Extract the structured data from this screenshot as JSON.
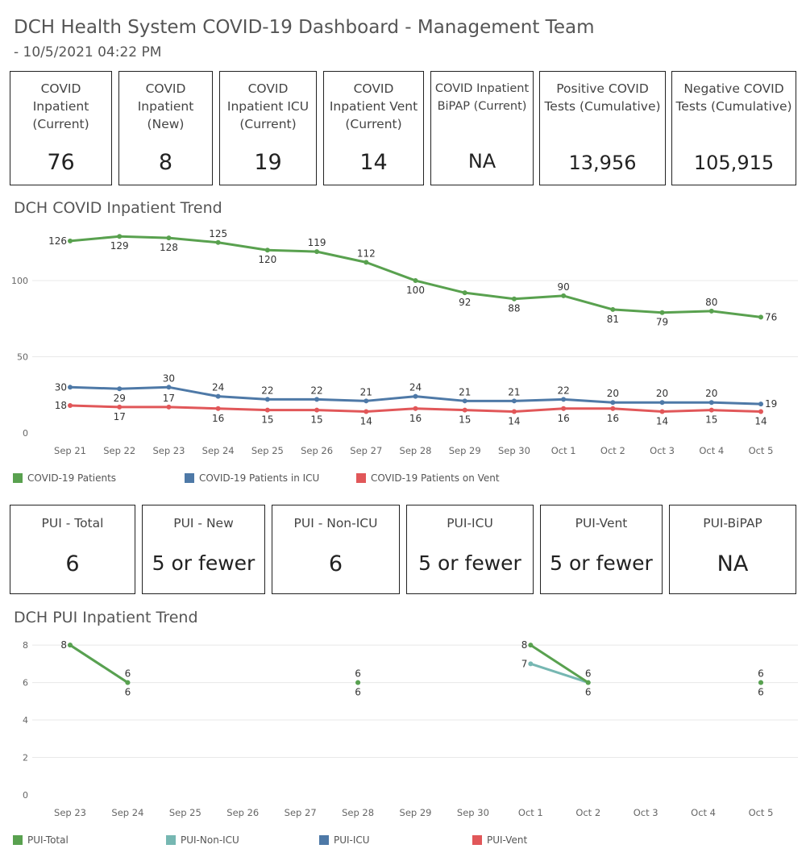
{
  "header": {
    "title": "DCH Health System COVID-19 Dashboard - Management Team",
    "subtitle": "- 10/5/2021 04:22 PM"
  },
  "kpis_top": [
    {
      "label": "COVID Inpatient (Current)",
      "value": "76"
    },
    {
      "label": "COVID Inpatient (New)",
      "value": "8"
    },
    {
      "label": "COVID Inpatient ICU (Current)",
      "value": "19"
    },
    {
      "label": "COVID Inpatient Vent (Current)",
      "value": "14"
    },
    {
      "label": "COVID Inpatient BiPAP (Current)",
      "value": "NA"
    },
    {
      "label": "Positive COVID Tests (Cumulative)",
      "value": "13,956"
    },
    {
      "label": "Negative COVID Tests (Cumulative)",
      "value": "105,915"
    }
  ],
  "kpis_pui": [
    {
      "label": "PUI - Total",
      "value": "6"
    },
    {
      "label": "PUI - New",
      "value": "5 or fewer"
    },
    {
      "label": "PUI - Non-ICU",
      "value": "6"
    },
    {
      "label": "PUI-ICU",
      "value": "5 or fewer"
    },
    {
      "label": "PUI-Vent",
      "value": "5 or fewer"
    },
    {
      "label": "PUI-BiPAP",
      "value": "NA"
    }
  ],
  "colors": {
    "green": "#59a14f",
    "teal": "#76b7b2",
    "blue": "#4e79a7",
    "red": "#e15759"
  },
  "chart_data": [
    {
      "type": "line",
      "title": "DCH COVID Inpatient Trend",
      "x": [
        "Sep 21",
        "Sep 22",
        "Sep 23",
        "Sep 24",
        "Sep 25",
        "Sep 26",
        "Sep 27",
        "Sep 28",
        "Sep 29",
        "Sep 30",
        "Oct 1",
        "Oct 2",
        "Oct 3",
        "Oct 4",
        "Oct 5"
      ],
      "yticks": [
        0,
        50,
        100
      ],
      "ylim": [
        0,
        136
      ],
      "grid": true,
      "legend_position": "bottom",
      "series": [
        {
          "name": "COVID-19 Patients",
          "color": "#59a14f",
          "values": [
            126,
            129,
            128,
            125,
            120,
            119,
            112,
            100,
            92,
            88,
            90,
            81,
            79,
            80,
            76
          ]
        },
        {
          "name": "COVID-19 Patients in ICU",
          "color": "#4e79a7",
          "values": [
            30,
            29,
            30,
            24,
            22,
            22,
            21,
            24,
            21,
            21,
            22,
            20,
            20,
            20,
            19
          ]
        },
        {
          "name": "COVID-19 Patients on Vent",
          "color": "#e15759",
          "values": [
            18,
            17,
            17,
            16,
            15,
            15,
            14,
            16,
            15,
            14,
            16,
            16,
            14,
            15,
            14
          ]
        }
      ]
    },
    {
      "type": "line",
      "title": "DCH PUI Inpatient Trend",
      "x": [
        "Sep 23",
        "Sep 24",
        "Sep 25",
        "Sep 26",
        "Sep 27",
        "Sep 28",
        "Sep 29",
        "Sep 30",
        "Oct 1",
        "Oct 2",
        "Oct 3",
        "Oct 4",
        "Oct 5"
      ],
      "yticks": [
        0,
        2,
        4,
        6,
        8
      ],
      "ylim": [
        0,
        8.5
      ],
      "grid": true,
      "legend_position": "bottom",
      "series": [
        {
          "name": "PUI-Total",
          "color": "#59a14f",
          "values": [
            8,
            6,
            null,
            null,
            null,
            6,
            null,
            null,
            8,
            6,
            null,
            null,
            6
          ]
        },
        {
          "name": "PUI-Non-ICU",
          "color": "#76b7b2",
          "values": [
            8,
            6,
            null,
            null,
            null,
            6,
            null,
            null,
            7,
            6,
            null,
            null,
            6
          ]
        },
        {
          "name": "PUI-ICU",
          "color": "#4e79a7",
          "values": [
            null,
            null,
            null,
            null,
            null,
            null,
            null,
            null,
            null,
            null,
            null,
            null,
            null
          ]
        },
        {
          "name": "PUI-Vent",
          "color": "#e15759",
          "values": [
            null,
            null,
            null,
            null,
            null,
            null,
            null,
            null,
            null,
            null,
            null,
            null,
            null
          ]
        }
      ]
    }
  ]
}
